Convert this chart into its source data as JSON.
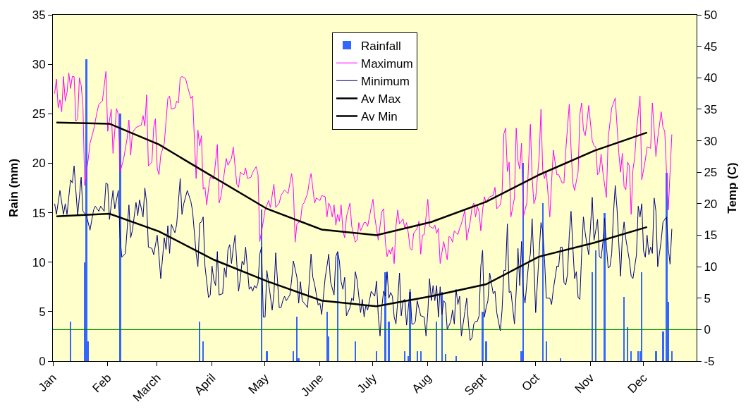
{
  "chart_data": {
    "type": "bar",
    "ylabel": "Rain (mm)",
    "y2label": "Temp (C)",
    "legend": "top",
    "xlim": [
      "--01-01",
      "--12-31"
    ],
    "xticks": [
      {
        "value": "--01-01",
        "label": "Jan"
      },
      {
        "value": "--02-01",
        "label": "Feb"
      },
      {
        "value": "--03-01",
        "label": "March"
      },
      {
        "value": "--04-01",
        "label": "April"
      },
      {
        "value": "--05-01",
        "label": "May"
      },
      {
        "value": "--06-01",
        "label": "June"
      },
      {
        "value": "--07-01",
        "label": "July"
      },
      {
        "value": "--08-01",
        "label": "Aug"
      },
      {
        "value": "--09-01",
        "label": "Sept"
      },
      {
        "value": "--10-01",
        "label": "Oct"
      },
      {
        "value": "--11-01",
        "label": "Nov"
      },
      {
        "value": "--12-01",
        "label": "Dec"
      }
    ],
    "ylim": [
      0,
      35
    ],
    "yticks": [
      0,
      5,
      10,
      15,
      20,
      25,
      30,
      35
    ],
    "y2lim": [
      -5,
      50
    ],
    "y2ticks": [
      -5,
      0,
      5,
      10,
      15,
      20,
      25,
      30,
      35,
      40,
      45,
      50
    ],
    "ref_lines": [
      {
        "axis": "y2",
        "value": 0,
        "color": "#008000"
      }
    ],
    "series": [
      {
        "name": "Rainfall",
        "color": "#3366ff",
        "x": [
          "--01-11",
          "--01-19",
          "--01-20",
          "--01-21",
          "--02-08",
          "--03-25",
          "--03-27",
          "--04-29",
          "--05-02",
          "--05-17",
          "--05-19",
          "--05-20",
          "--06-05",
          "--06-06",
          "--06-11",
          "--06-21",
          "--07-03",
          "--07-08",
          "--07-10",
          "--07-19",
          "--07-21",
          "--07-22",
          "--07-26",
          "--07-28",
          "--08-06",
          "--08-09",
          "--08-11",
          "--08-17",
          "--09-01",
          "--09-03",
          "--09-23",
          "--09-24",
          "--10-05",
          "--10-07",
          "--10-15",
          "--11-02",
          "--11-04",
          "--11-09",
          "--11-20",
          "--11-22",
          "--11-24",
          "--11-28",
          "--11-29",
          "--11-30",
          "--12-08",
          "--12-12",
          "--12-14",
          "--12-15",
          "--12-17"
        ],
        "values": [
          4,
          10,
          30.5,
          2,
          25,
          4,
          2,
          15.3,
          1,
          1,
          4.5,
          0.3,
          5,
          2.5,
          11,
          2,
          1,
          9,
          4,
          1,
          0.5,
          7,
          1,
          1,
          4,
          7,
          0.7,
          0.5,
          5,
          2,
          1,
          20,
          16,
          2,
          0.3,
          9,
          11.2,
          15,
          6.5,
          3.4,
          1,
          1,
          1,
          9,
          1,
          3,
          19,
          6,
          1
        ]
      },
      {
        "name": "Maximum",
        "type": "line",
        "axis": "y2",
        "color": "#ff00ff",
        "x": [
          "--01-02",
          "--01-03",
          "--01-04",
          "--01-05",
          "--01-06",
          "--01-07",
          "--01-08",
          "--01-09",
          "--01-10",
          "--01-11",
          "--01-12",
          "--01-13",
          "--01-14",
          "--01-15",
          "--01-16",
          "--01-17",
          "--01-18",
          "--01-19",
          "--01-21",
          "--01-22",
          "--01-24",
          "--01-26",
          "--01-27",
          "--01-29",
          "--01-31",
          "--02-01",
          "--02-03",
          "--02-04",
          "--02-06",
          "--02-07",
          "--02-08",
          "--02-10",
          "--02-12",
          "--02-13",
          "--02-14",
          "--02-15",
          "--02-17",
          "--02-20",
          "--02-21",
          "--02-22",
          "--02-23",
          "--02-24",
          "--02-26",
          "--02-27",
          "--02-28",
          "--03-01",
          "--03-02",
          "--03-03",
          "--03-05",
          "--03-06",
          "--03-07",
          "--03-08",
          "--03-09",
          "--03-11",
          "--03-12",
          "--03-13",
          "--03-14",
          "--03-15",
          "--03-17",
          "--03-18",
          "--03-20",
          "--03-21",
          "--03-22",
          "--03-23",
          "--03-24",
          "--03-25",
          "--03-26",
          "--03-27",
          "--03-28",
          "--03-29",
          "--03-30",
          "--03-31",
          "--04-02",
          "--04-04",
          "--04-05",
          "--04-06",
          "--04-08",
          "--04-09",
          "--04-10",
          "--04-12",
          "--04-13",
          "--04-15",
          "--04-16",
          "--04-17",
          "--04-19",
          "--04-20",
          "--04-21",
          "--04-23",
          "--04-24",
          "--04-26",
          "--04-27",
          "--04-28",
          "--04-30",
          "--05-01",
          "--05-03",
          "--05-04",
          "--05-05",
          "--05-06",
          "--05-07",
          "--05-09",
          "--05-10",
          "--05-12",
          "--05-14",
          "--05-16",
          "--05-17",
          "--05-18",
          "--05-19",
          "--05-21",
          "--05-22",
          "--05-23",
          "--05-25",
          "--05-26",
          "--05-27",
          "--05-29",
          "--05-30",
          "--06-01",
          "--06-02",
          "--06-04",
          "--06-05",
          "--06-06",
          "--06-07",
          "--06-08",
          "--06-09",
          "--06-10",
          "--06-11",
          "--06-12",
          "--06-13",
          "--06-14",
          "--06-15",
          "--06-16",
          "--06-18",
          "--06-19",
          "--06-21",
          "--06-22",
          "--06-23",
          "--06-24",
          "--06-26",
          "--06-27",
          "--06-28",
          "--06-30",
          "--07-01",
          "--07-02",
          "--07-04",
          "--07-06",
          "--07-07",
          "--07-08",
          "--07-09",
          "--07-10",
          "--07-11",
          "--07-12",
          "--07-13",
          "--07-14",
          "--07-15",
          "--07-16",
          "--07-18",
          "--07-19",
          "--07-20",
          "--07-21",
          "--07-22",
          "--07-23",
          "--07-24",
          "--07-26",
          "--07-27",
          "--07-28",
          "--07-29",
          "--07-30",
          "--08-01",
          "--08-02",
          "--08-04",
          "--08-05",
          "--08-06",
          "--08-07",
          "--08-08",
          "--08-10",
          "--08-12",
          "--08-13",
          "--08-14",
          "--08-15",
          "--08-16",
          "--08-18",
          "--08-19",
          "--08-20",
          "--08-22",
          "--08-23",
          "--08-25",
          "--08-26",
          "--08-27",
          "--08-28",
          "--08-29",
          "--08-30",
          "--08-31",
          "--09-01",
          "--09-02",
          "--09-03",
          "--09-04",
          "--09-05",
          "--09-07",
          "--09-08",
          "--09-09",
          "--09-11",
          "--09-12",
          "--09-13",
          "--09-14",
          "--09-15",
          "--09-16",
          "--09-17",
          "--09-19",
          "--09-20",
          "--09-21",
          "--09-22",
          "--09-23",
          "--09-24",
          "--09-26",
          "--09-27",
          "--09-28",
          "--09-29",
          "--09-30",
          "--10-01",
          "--10-03",
          "--10-04",
          "--10-05",
          "--10-06",
          "--10-07",
          "--10-09",
          "--10-10",
          "--10-11",
          "--10-13",
          "--10-14",
          "--10-16",
          "--10-17",
          "--10-18",
          "--10-19",
          "--10-20",
          "--10-21",
          "--10-22",
          "--10-23",
          "--10-25",
          "--10-26",
          "--10-27",
          "--10-28",
          "--10-29",
          "--10-30",
          "--10-31",
          "--11-02",
          "--11-03",
          "--11-04",
          "--11-05",
          "--11-06",
          "--11-07",
          "--11-08",
          "--11-10",
          "--11-11",
          "--11-13",
          "--11-15",
          "--11-17",
          "--11-18",
          "--11-19",
          "--11-20",
          "--11-21",
          "--11-22",
          "--11-23",
          "--11-24",
          "--11-25",
          "--11-26",
          "--11-27",
          "--11-29",
          "--11-30",
          "--12-02",
          "--12-03",
          "--12-05",
          "--12-06",
          "--12-08",
          "--12-09",
          "--12-11",
          "--12-12",
          "--12-13",
          "--12-14",
          "--12-15",
          "--12-17"
        ],
        "values": [
          37.5,
          39.8,
          35.2,
          36.5,
          34.6,
          40.2,
          36.3,
          37.7,
          40.8,
          38.3,
          40.2,
          40.2,
          33.1,
          33.5,
          40.0,
          38.8,
          35.6,
          22.9,
          27.1,
          29.6,
          31.7,
          34.6,
          35.8,
          36.3,
          41.0,
          31.5,
          35.0,
          28.0,
          35.1,
          34.2,
          25.0,
          27.1,
          30.4,
          33.3,
          27.7,
          31.3,
          32.1,
          32.5,
          34.0,
          32.3,
          37.3,
          26.0,
          26.6,
          32.1,
          33.5,
          25.6,
          24.6,
          27.7,
          29.6,
          33.1,
          36.7,
          37.1,
          35.0,
          35.2,
          36.3,
          36.0,
          40.0,
          40.2,
          39.9,
          38.8,
          36.7,
          37.1,
          30.4,
          24.0,
          31.7,
          29.2,
          30.8,
          22.3,
          22.6,
          19.8,
          22.4,
          24.2,
          23.9,
          29.4,
          20.1,
          21.1,
          25.0,
          27.2,
          26.1,
          27.2,
          29.0,
          23.1,
          22.6,
          25.0,
          24.6,
          25.7,
          24.0,
          24.2,
          25.0,
          25.9,
          24.6,
          14.0,
          17.2,
          19.0,
          20.5,
          19.4,
          21.3,
          23.1,
          19.4,
          20.1,
          21.3,
          22.2,
          21.6,
          24.8,
          22.4,
          13.9,
          16.8,
          17.2,
          19.8,
          20.1,
          21.6,
          23.5,
          24.8,
          20.1,
          20.9,
          20.5,
          21.3,
          21.1,
          17.9,
          20.1,
          19.4,
          17.9,
          19.8,
          16.6,
          18.3,
          17.2,
          19.8,
          15.7,
          14.6,
          17.9,
          20.1,
          16.4,
          13.9,
          14.2,
          17.0,
          15.7,
          17.0,
          17.0,
          16.4,
          19.4,
          20.7,
          17.9,
          14.2,
          18.7,
          19.2,
          13.9,
          11.6,
          12.7,
          12.0,
          13.1,
          10.5,
          16.4,
          19.0,
          16.8,
          17.6,
          16.1,
          17.0,
          15.3,
          12.9,
          12.6,
          15.3,
          16.1,
          17.2,
          12.0,
          15.0,
          15.1,
          20.7,
          16.4,
          16.1,
          16.6,
          15.3,
          16.1,
          10.5,
          14.0,
          11.1,
          14.8,
          14.6,
          13.9,
          15.7,
          15.1,
          16.1,
          16.8,
          19.0,
          14.2,
          17.2,
          19.4,
          20.1,
          17.9,
          19.6,
          18.7,
          15.7,
          19.0,
          21.1,
          20.1,
          20.7,
          21.1,
          21.3,
          22.6,
          19.2,
          19.8,
          21.6,
          31.1,
          32.0,
          25.1,
          26.6,
          17.9,
          20.9,
          32.0,
          26.8,
          25.5,
          29.6,
          17.9,
          20.1,
          26.4,
          32.6,
          24.2,
          20.0,
          20.9,
          27.6,
          35.0,
          25.3,
          24.0,
          25.1,
          17.9,
          23.5,
          28.5,
          24.6,
          24.6,
          23.3,
          23.3,
          28.3,
          32.1,
          35.8,
          28.8,
          23.3,
          22.1,
          25.0,
          34.2,
          36.0,
          31.7,
          30.8,
          32.9,
          35.6,
          30.0,
          29.2,
          29.0,
          24.6,
          25.0,
          27.9,
          25.0,
          21.0,
          30.4,
          35.2,
          36.8,
          28.1,
          25.0,
          28.0,
          22.7,
          22.2,
          26.6,
          26.0,
          18.3,
          25.4,
          27.3,
          31.5,
          37.1,
          23.8,
          26.9,
          29.0,
          28.8,
          36.0,
          27.5,
          30.4,
          34.6,
          32.1,
          31.5,
          25.0,
          19.0,
          31.0
        ]
      },
      {
        "name": "Minimum",
        "type": "line",
        "axis": "y2",
        "color": "#000080",
        "x": [
          "--01-02",
          "--01-03",
          "--01-05",
          "--01-07",
          "--01-08",
          "--01-09",
          "--01-11",
          "--01-12",
          "--01-13",
          "--01-15",
          "--01-17",
          "--01-18",
          "--01-20",
          "--01-22",
          "--01-24",
          "--01-25",
          "--01-27",
          "--01-28",
          "--01-30",
          "--01-31",
          "--02-01",
          "--02-02",
          "--02-03",
          "--02-04",
          "--02-05",
          "--02-07",
          "--02-08",
          "--02-09",
          "--02-11",
          "--02-13",
          "--02-14",
          "--02-15",
          "--02-17",
          "--02-18",
          "--02-19",
          "--02-21",
          "--02-22",
          "--02-23",
          "--02-24",
          "--02-26",
          "--02-27",
          "--03-01",
          "--03-02",
          "--03-03",
          "--03-05",
          "--03-06",
          "--03-07",
          "--03-08",
          "--03-09",
          "--03-11",
          "--03-12",
          "--03-14",
          "--03-15",
          "--03-16",
          "--03-18",
          "--03-20",
          "--03-21",
          "--03-23",
          "--03-24",
          "--03-25",
          "--03-26",
          "--03-27",
          "--03-28",
          "--03-30",
          "--03-31",
          "--04-01",
          "--04-02",
          "--04-03",
          "--04-04",
          "--04-05",
          "--04-07",
          "--04-08",
          "--04-09",
          "--04-10",
          "--04-11",
          "--04-12",
          "--04-13",
          "--04-14",
          "--04-16",
          "--04-17",
          "--04-18",
          "--04-19",
          "--04-20",
          "--04-22",
          "--04-23",
          "--04-24",
          "--04-25",
          "--04-26",
          "--04-27",
          "--04-28",
          "--04-29",
          "--04-30",
          "--05-01",
          "--05-02",
          "--05-04",
          "--05-05",
          "--05-06",
          "--05-07",
          "--05-09",
          "--05-10",
          "--05-11",
          "--05-12",
          "--05-13",
          "--05-15",
          "--05-16",
          "--05-17",
          "--05-19",
          "--05-20",
          "--05-21",
          "--05-22",
          "--05-24",
          "--05-25",
          "--05-27",
          "--05-28",
          "--05-29",
          "--05-31",
          "--06-01",
          "--06-02",
          "--06-04",
          "--06-05",
          "--06-06",
          "--06-07",
          "--06-09",
          "--06-10",
          "--06-11",
          "--06-12",
          "--06-13",
          "--06-14",
          "--06-15",
          "--06-16",
          "--06-18",
          "--06-19",
          "--06-20",
          "--06-21",
          "--06-22",
          "--06-24",
          "--06-25",
          "--06-26",
          "--06-27",
          "--06-28",
          "--06-29",
          "--06-30",
          "--07-02",
          "--07-03",
          "--07-04",
          "--07-05",
          "--07-06",
          "--07-07",
          "--07-08",
          "--07-09",
          "--07-10",
          "--07-11",
          "--07-12",
          "--07-13",
          "--07-14",
          "--07-15",
          "--07-16",
          "--07-17",
          "--07-18",
          "--07-19",
          "--07-20",
          "--07-21",
          "--07-22",
          "--07-23",
          "--07-24",
          "--07-25",
          "--07-26",
          "--07-28",
          "--07-30",
          "--07-31",
          "--08-01",
          "--08-02",
          "--08-03",
          "--08-04",
          "--08-05",
          "--08-06",
          "--08-07",
          "--08-08",
          "--08-09",
          "--08-10",
          "--08-11",
          "--08-12",
          "--08-14",
          "--08-15",
          "--08-16",
          "--08-17",
          "--08-18",
          "--08-19",
          "--08-20",
          "--08-22",
          "--08-23",
          "--08-24",
          "--08-25",
          "--08-26",
          "--08-27",
          "--08-28",
          "--08-29",
          "--08-30",
          "--08-31",
          "--09-01",
          "--09-02",
          "--09-03",
          "--09-04",
          "--09-05",
          "--09-07",
          "--09-08",
          "--09-09",
          "--09-11",
          "--09-12",
          "--09-13",
          "--09-14",
          "--09-15",
          "--09-16",
          "--09-17",
          "--09-19",
          "--09-20",
          "--09-21",
          "--09-22",
          "--09-23",
          "--09-24",
          "--09-25",
          "--09-27",
          "--09-28",
          "--09-29",
          "--09-30",
          "--10-01",
          "--10-03",
          "--10-04",
          "--10-05",
          "--10-06",
          "--10-07",
          "--10-09",
          "--10-10",
          "--10-11",
          "--10-13",
          "--10-14",
          "--10-15",
          "--10-16",
          "--10-17",
          "--10-18",
          "--10-19",
          "--10-20",
          "--10-21",
          "--10-22",
          "--10-23",
          "--10-24",
          "--10-25",
          "--10-26",
          "--10-27",
          "--10-28",
          "--10-29",
          "--10-30",
          "--10-31",
          "--11-01",
          "--11-02",
          "--11-03",
          "--11-04",
          "--11-05",
          "--11-06",
          "--11-07",
          "--11-08",
          "--11-09",
          "--11-10",
          "--11-11",
          "--11-12",
          "--11-13",
          "--11-14",
          "--11-15",
          "--11-16",
          "--11-17",
          "--11-18",
          "--11-19",
          "--11-20",
          "--11-21",
          "--11-23",
          "--11-24",
          "--11-25",
          "--11-26",
          "--11-27",
          "--11-28",
          "--11-29",
          "--11-30",
          "--12-01",
          "--12-02",
          "--12-03",
          "--12-04",
          "--12-05",
          "--12-06",
          "--12-07",
          "--12-08",
          "--12-09",
          "--12-11",
          "--12-12",
          "--12-13",
          "--12-14",
          "--12-15",
          "--12-16",
          "--12-17"
        ],
        "values": [
          20.0,
          18.3,
          22.1,
          18.3,
          20.0,
          18.3,
          23.8,
          23.3,
          26.0,
          18.1,
          24.2,
          18.8,
          18.1,
          15.8,
          19.0,
          19.6,
          18.8,
          19.6,
          18.8,
          23.3,
          23.1,
          17.5,
          19.8,
          22.1,
          19.2,
          22.1,
          14.6,
          11.5,
          12.1,
          19.8,
          14.6,
          15.8,
          20.2,
          18.1,
          20.6,
          17.9,
          22.5,
          20.2,
          13.1,
          12.9,
          11.9,
          15.0,
          11.7,
          8.1,
          14.6,
          12.7,
          16.5,
          12.1,
          16.7,
          15.4,
          16.7,
          24.0,
          18.3,
          20.0,
          22.1,
          20.4,
          18.8,
          12.1,
          10.0,
          16.9,
          17.1,
          17.9,
          10.1,
          5.1,
          5.5,
          10.1,
          7.9,
          7.0,
          12.4,
          5.5,
          5.7,
          9.8,
          8.3,
          12.7,
          13.5,
          10.5,
          12.9,
          15.0,
          6.1,
          8.1,
          10.9,
          10.3,
          13.1,
          6.4,
          6.8,
          6.1,
          7.0,
          6.6,
          7.4,
          12.0,
          13.1,
          2.0,
          2.0,
          9.4,
          5.3,
          3.1,
          5.7,
          12.2,
          3.5,
          3.5,
          4.6,
          5.3,
          4.6,
          5.5,
          7.9,
          10.9,
          8.3,
          4.2,
          7.6,
          4.6,
          3.9,
          3.5,
          12.0,
          8.3,
          7.2,
          3.9,
          4.2,
          2.4,
          8.3,
          10.1,
          12.0,
          7.6,
          5.5,
          11.6,
          12.4,
          10.9,
          7.6,
          6.4,
          8.3,
          2.2,
          3.5,
          5.0,
          4.6,
          9.2,
          7.9,
          2.7,
          4.8,
          2.0,
          3.9,
          3.1,
          4.6,
          6.1,
          5.3,
          7.7,
          2.2,
          -1.0,
          3.5,
          6.1,
          5.3,
          9.2,
          5.0,
          5.9,
          5.3,
          2.0,
          0.9,
          4.6,
          9.0,
          2.2,
          4.6,
          4.8,
          0.7,
          3.5,
          6.4,
          0.9,
          0.9,
          1.3,
          4.6,
          2.2,
          2.0,
          -1.0,
          2.7,
          8.1,
          4.6,
          7.0,
          4.6,
          7.0,
          2.0,
          6.8,
          2.4,
          4.6,
          4.2,
          0.0,
          1.3,
          3.1,
          0.9,
          6.4,
          4.0,
          5.3,
          -1.0,
          2.9,
          5.0,
          0.9,
          -1.7,
          -1.3,
          0.9,
          1.3,
          1.3,
          2.2,
          10.1,
          12.6,
          2.0,
          3.5,
          4.6,
          9.0,
          5.7,
          6.1,
          2.7,
          -0.2,
          3.1,
          9.4,
          9.4,
          16.8,
          5.9,
          6.1,
          0.9,
          6.1,
          12.9,
          7.0,
          14.0,
          5.7,
          4.2,
          10.5,
          12.0,
          17.6,
          10.5,
          2.7,
          12.4,
          17.0,
          15.7,
          11.3,
          5.0,
          5.0,
          4.0,
          6.4,
          10.1,
          10.0,
          13.1,
          13.1,
          7.5,
          7.1,
          8.8,
          15.0,
          18.8,
          13.3,
          8.1,
          9.2,
          5.1,
          4.8,
          12.1,
          17.9,
          15.4,
          13.5,
          11.9,
          16.3,
          21.0,
          14.2,
          15.8,
          17.5,
          11.7,
          11.3,
          13.8,
          17.7,
          13.3,
          9.8,
          10.0,
          12.1,
          18.5,
          22.9,
          19.2,
          13.8,
          8.5,
          14.6,
          17.1,
          14.4,
          11.0,
          8.5,
          8.1,
          10.0,
          11.9,
          19.6,
          17.9,
          20.0,
          12.5,
          11.5,
          15.0,
          11.9,
          13.1,
          12.1,
          20.9,
          18.8,
          10.0,
          14.2,
          17.1,
          17.5,
          17.9,
          12.9,
          10.4,
          16.0
        ]
      },
      {
        "name": "Av Max",
        "type": "line",
        "axis": "y2",
        "color": "#000000",
        "x": [
          "--01-03",
          "--02-02",
          "--03-02",
          "--04-02",
          "--05-02",
          "--06-02",
          "--07-03",
          "--08-03",
          "--09-03",
          "--10-03",
          "--11-03",
          "--12-03"
        ],
        "values": [
          32.9,
          32.7,
          29.4,
          24.2,
          19.2,
          15.9,
          15.0,
          17.1,
          20.3,
          24.6,
          28.4,
          31.3
        ]
      },
      {
        "name": "Av Min",
        "type": "line",
        "axis": "y2",
        "color": "#000000",
        "x": [
          "--01-03",
          "--02-02",
          "--03-02",
          "--04-02",
          "--05-02",
          "--06-02",
          "--07-03",
          "--08-03",
          "--09-03",
          "--10-03",
          "--11-03",
          "--12-03"
        ],
        "values": [
          18.0,
          18.4,
          15.6,
          11.1,
          7.7,
          4.6,
          3.7,
          5.3,
          7.2,
          11.6,
          13.8,
          16.3
        ]
      }
    ]
  }
}
